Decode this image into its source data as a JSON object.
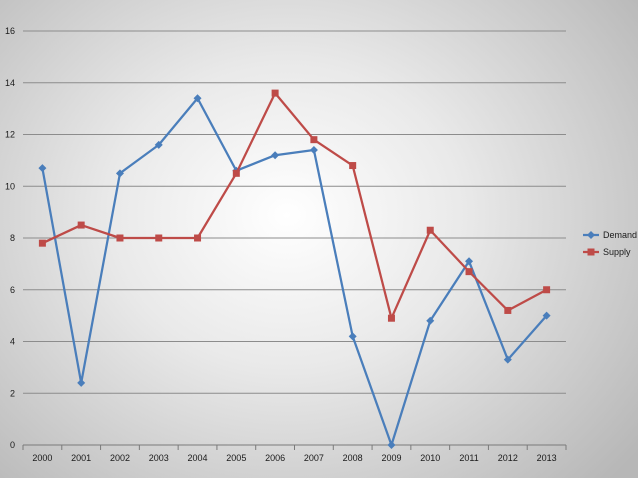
{
  "chart_data": {
    "type": "line",
    "categories": [
      "2000",
      "2001",
      "2002",
      "2003",
      "2004",
      "2005",
      "2006",
      "2007",
      "2008",
      "2009",
      "2010",
      "2011",
      "2012",
      "2013"
    ],
    "series": [
      {
        "name": "Demand",
        "color": "#4a7ebb",
        "marker": "diamond",
        "values": [
          10.7,
          2.4,
          10.5,
          11.6,
          13.4,
          10.6,
          11.2,
          11.4,
          4.2,
          0.0,
          4.8,
          7.1,
          3.3,
          5.0
        ]
      },
      {
        "name": "Supply",
        "color": "#be4b48",
        "marker": "square",
        "values": [
          7.8,
          8.5,
          8.0,
          8.0,
          8.0,
          10.5,
          13.6,
          11.8,
          10.8,
          4.9,
          8.3,
          6.7,
          5.2,
          6.0
        ]
      }
    ],
    "y_ticks": [
      "0",
      "2",
      "4",
      "6",
      "8",
      "10",
      "12",
      "14",
      "16"
    ],
    "ylim": [
      0,
      16
    ],
    "grid": true,
    "legend_position": "right"
  }
}
